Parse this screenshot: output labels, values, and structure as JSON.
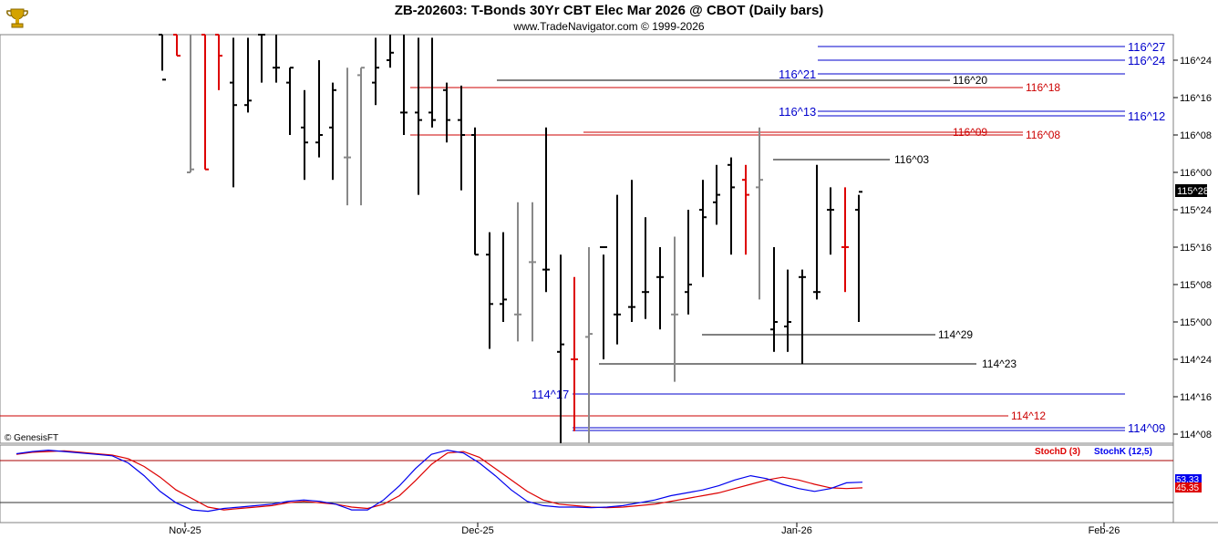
{
  "header": {
    "title": "ZB-202603:  T-Bonds 30Yr CBT Elec Mar 2026 @ CBOT  (Daily bars)",
    "subtitle": "www.TradeNavigator.com © 1999-2026",
    "logo_icon": "trophy-logo-icon"
  },
  "copyright": "© GenesisFT",
  "colors": {
    "up_bar": "#000000",
    "down_bar": "#dd0000",
    "neutral_bar": "#888888",
    "blue_level": "#0000cc",
    "red_level": "#cc0000",
    "black_level": "#000000",
    "stoch_d": "#dd0000",
    "stoch_k": "#0000ee"
  },
  "chart_data": [
    {
      "type": "ohlc",
      "title": "ZB-202603:  T-Bonds 30Yr CBT Elec Mar 2026 @ CBOT  (Daily bars)",
      "y_unit": "32nds (handle^ticks)",
      "ylim": [
        114.17,
        116.9
      ],
      "y_ticks": [
        "116^24",
        "116^16",
        "116^08",
        "116^00",
        "115^24",
        "115^16",
        "115^08",
        "115^00",
        "114^24",
        "114^16",
        "114^08"
      ],
      "x_ticks": [
        "Nov-25",
        "Dec-25",
        "Jan-26",
        "Feb-26"
      ],
      "last_price": "115^28",
      "bars": [
        {
          "c": "k",
          "o": 116.95,
          "h": 117.0,
          "l": 116.68,
          "cl": 116.62
        },
        {
          "c": "r",
          "o": 116.95,
          "h": 117.0,
          "l": 116.78,
          "cl": 116.78
        },
        {
          "c": "g",
          "o": 116.0,
          "h": 117.0,
          "l": 116.0,
          "cl": 116.02
        },
        {
          "c": "r",
          "o": 117.0,
          "h": 117.0,
          "l": 116.02,
          "cl": 116.02
        },
        {
          "c": "r",
          "o": 117.0,
          "h": 117.0,
          "l": 116.55,
          "cl": 116.78
        },
        {
          "c": "k",
          "o": 116.6,
          "h": 116.9,
          "l": 115.9,
          "cl": 116.45
        },
        {
          "c": "k",
          "o": 116.45,
          "h": 116.9,
          "l": 116.4,
          "cl": 116.48
        },
        {
          "c": "k",
          "o": 117.0,
          "h": 117.0,
          "l": 116.6,
          "cl": 117.0
        },
        {
          "c": "k",
          "o": 116.7,
          "h": 117.0,
          "l": 116.6,
          "cl": 116.7
        },
        {
          "c": "k",
          "o": 116.6,
          "h": 116.7,
          "l": 116.25,
          "cl": 116.7
        },
        {
          "c": "k",
          "o": 116.3,
          "h": 116.55,
          "l": 115.95,
          "cl": 116.2
        },
        {
          "c": "k",
          "o": 116.2,
          "h": 116.75,
          "l": 116.1,
          "cl": 116.25
        },
        {
          "c": "k",
          "o": 116.3,
          "h": 116.6,
          "l": 115.95,
          "cl": 116.55
        },
        {
          "c": "g",
          "o": 116.1,
          "h": 116.7,
          "l": 115.78,
          "cl": 116.1
        },
        {
          "c": "g",
          "o": 116.65,
          "h": 116.7,
          "l": 115.78,
          "cl": 116.7
        },
        {
          "c": "k",
          "o": 116.6,
          "h": 116.9,
          "l": 116.45,
          "cl": 116.7
        },
        {
          "c": "k",
          "o": 116.75,
          "h": 117.0,
          "l": 116.7,
          "cl": 116.8
        },
        {
          "c": "k",
          "o": 116.4,
          "h": 117.0,
          "l": 116.25,
          "cl": 116.4
        },
        {
          "c": "k",
          "o": 116.4,
          "h": 116.9,
          "l": 115.85,
          "cl": 116.35
        },
        {
          "c": "k",
          "o": 116.4,
          "h": 116.9,
          "l": 116.3,
          "cl": 116.35
        },
        {
          "c": "k",
          "o": 116.55,
          "h": 116.6,
          "l": 116.2,
          "cl": 116.35
        },
        {
          "c": "k",
          "o": 116.35,
          "h": 116.58,
          "l": 115.88,
          "cl": 116.25
        },
        {
          "c": "k",
          "o": 116.25,
          "h": 116.3,
          "l": 115.45,
          "cl": 115.45
        },
        {
          "c": "k",
          "o": 115.45,
          "h": 115.6,
          "l": 114.82,
          "cl": 115.12
        },
        {
          "c": "k",
          "o": 115.12,
          "h": 115.6,
          "l": 115.0,
          "cl": 115.15
        },
        {
          "c": "g",
          "o": 115.05,
          "h": 115.8,
          "l": 114.87,
          "cl": 115.05
        },
        {
          "c": "g",
          "o": 115.4,
          "h": 115.8,
          "l": 114.87,
          "cl": 115.4
        },
        {
          "c": "k",
          "o": 115.35,
          "h": 116.3,
          "l": 115.2,
          "cl": 115.35
        },
        {
          "c": "k",
          "o": 114.8,
          "h": 115.45,
          "l": 114.17,
          "cl": 114.85
        },
        {
          "c": "r",
          "o": 114.75,
          "h": 115.3,
          "l": 114.27,
          "cl": 114.75
        },
        {
          "c": "g",
          "o": 114.9,
          "h": 115.5,
          "l": 114.17,
          "cl": 114.92
        },
        {
          "c": "k",
          "o": 115.5,
          "h": 115.45,
          "l": 114.75,
          "cl": 115.5
        },
        {
          "c": "k",
          "o": 115.05,
          "h": 115.85,
          "l": 114.85,
          "cl": 115.05
        },
        {
          "c": "k",
          "o": 115.1,
          "h": 115.95,
          "l": 115.0,
          "cl": 115.1
        },
        {
          "c": "k",
          "o": 115.2,
          "h": 115.7,
          "l": 115.02,
          "cl": 115.2
        },
        {
          "c": "k",
          "o": 115.3,
          "h": 115.5,
          "l": 114.95,
          "cl": 115.3
        },
        {
          "c": "g",
          "o": 115.05,
          "h": 115.57,
          "l": 114.6,
          "cl": 115.05
        },
        {
          "c": "k",
          "o": 115.2,
          "h": 115.75,
          "l": 115.05,
          "cl": 115.25
        },
        {
          "c": "k",
          "o": 115.75,
          "h": 115.95,
          "l": 115.3,
          "cl": 115.7
        },
        {
          "c": "k",
          "o": 115.8,
          "h": 116.05,
          "l": 115.65,
          "cl": 115.85
        },
        {
          "c": "k",
          "o": 116.05,
          "h": 116.1,
          "l": 115.45,
          "cl": 115.9
        },
        {
          "c": "r",
          "o": 115.95,
          "h": 116.05,
          "l": 115.45,
          "cl": 115.85
        },
        {
          "c": "g",
          "o": 115.9,
          "h": 116.3,
          "l": 115.15,
          "cl": 115.95
        },
        {
          "c": "k",
          "o": 114.95,
          "h": 115.5,
          "l": 114.8,
          "cl": 115.0
        },
        {
          "c": "k",
          "o": 114.97,
          "h": 115.35,
          "l": 114.8,
          "cl": 115.0
        },
        {
          "c": "k",
          "o": 115.3,
          "h": 115.35,
          "l": 114.72,
          "cl": 115.3
        },
        {
          "c": "k",
          "o": 115.2,
          "h": 116.05,
          "l": 115.15,
          "cl": 115.2
        },
        {
          "c": "k",
          "o": 115.75,
          "h": 115.9,
          "l": 115.45,
          "cl": 115.75
        },
        {
          "c": "r",
          "o": 115.5,
          "h": 115.9,
          "l": 115.2,
          "cl": 115.5
        },
        {
          "c": "k",
          "o": 115.75,
          "h": 115.85,
          "l": 115.0,
          "cl": 115.87
        }
      ],
      "levels": [
        {
          "label": "116^27",
          "color": "blue",
          "side": "right",
          "value": 116.84
        },
        {
          "label": "116^24",
          "color": "blue",
          "side": "right",
          "value": 116.75
        },
        {
          "label": "116^21",
          "color": "blue",
          "side": "left",
          "value": 116.66
        },
        {
          "label": "116^20",
          "color": "black",
          "side": "mid",
          "value": 116.63
        },
        {
          "label": "116^18",
          "color": "red",
          "side": "mid",
          "value": 116.56
        },
        {
          "label": "116^13",
          "color": "blue",
          "side": "left",
          "value": 116.41
        },
        {
          "label": "116^12",
          "color": "blue",
          "side": "right",
          "value": 116.38
        },
        {
          "label": "116^09",
          "color": "red",
          "side": "mid",
          "value": 116.28
        },
        {
          "label": "116^08",
          "color": "red",
          "side": "mid",
          "value": 116.25
        },
        {
          "label": "116^03",
          "color": "black",
          "side": "mid",
          "value": 116.09
        },
        {
          "label": "114^29",
          "color": "black",
          "side": "mid",
          "value": 114.91
        },
        {
          "label": "114^23",
          "color": "black",
          "side": "mid",
          "value": 114.72
        },
        {
          "label": "114^17",
          "color": "blue",
          "side": "left",
          "value": 114.53
        },
        {
          "label": "114^12",
          "color": "red",
          "side": "mid",
          "value": 114.38
        },
        {
          "label": "114^09",
          "color": "blue",
          "side": "right",
          "value": 114.28
        }
      ]
    },
    {
      "type": "line",
      "title": "",
      "series": [
        {
          "name": "StochD (3)",
          "values": [
            92,
            95,
            96,
            97,
            95,
            93,
            91,
            86,
            75,
            60,
            42,
            30,
            18,
            14,
            16,
            18,
            20,
            24,
            26,
            24,
            22,
            18,
            16,
            22,
            34,
            55,
            78,
            94,
            96,
            88,
            72,
            56,
            40,
            28,
            22,
            20,
            18,
            17,
            18,
            20,
            22,
            26,
            30,
            34,
            38,
            44,
            50,
            56,
            60,
            56,
            50,
            45,
            44,
            45
          ]
        },
        {
          "name": "StochK (12,5)",
          "values": [
            93,
            96,
            98,
            96,
            94,
            92,
            90,
            80,
            62,
            40,
            24,
            14,
            12,
            16,
            18,
            20,
            22,
            26,
            28,
            26,
            22,
            14,
            14,
            28,
            48,
            72,
            92,
            98,
            94,
            80,
            62,
            42,
            26,
            20,
            18,
            18,
            17,
            18,
            20,
            24,
            28,
            34,
            38,
            42,
            48,
            56,
            62,
            58,
            50,
            44,
            40,
            44,
            52,
            53
          ]
        }
      ],
      "ylim": [
        0,
        100
      ],
      "legend": [
        "StochD (3)",
        "StochK (12,5)"
      ],
      "last_labels": [
        "53.33",
        "45.35"
      ]
    }
  ]
}
